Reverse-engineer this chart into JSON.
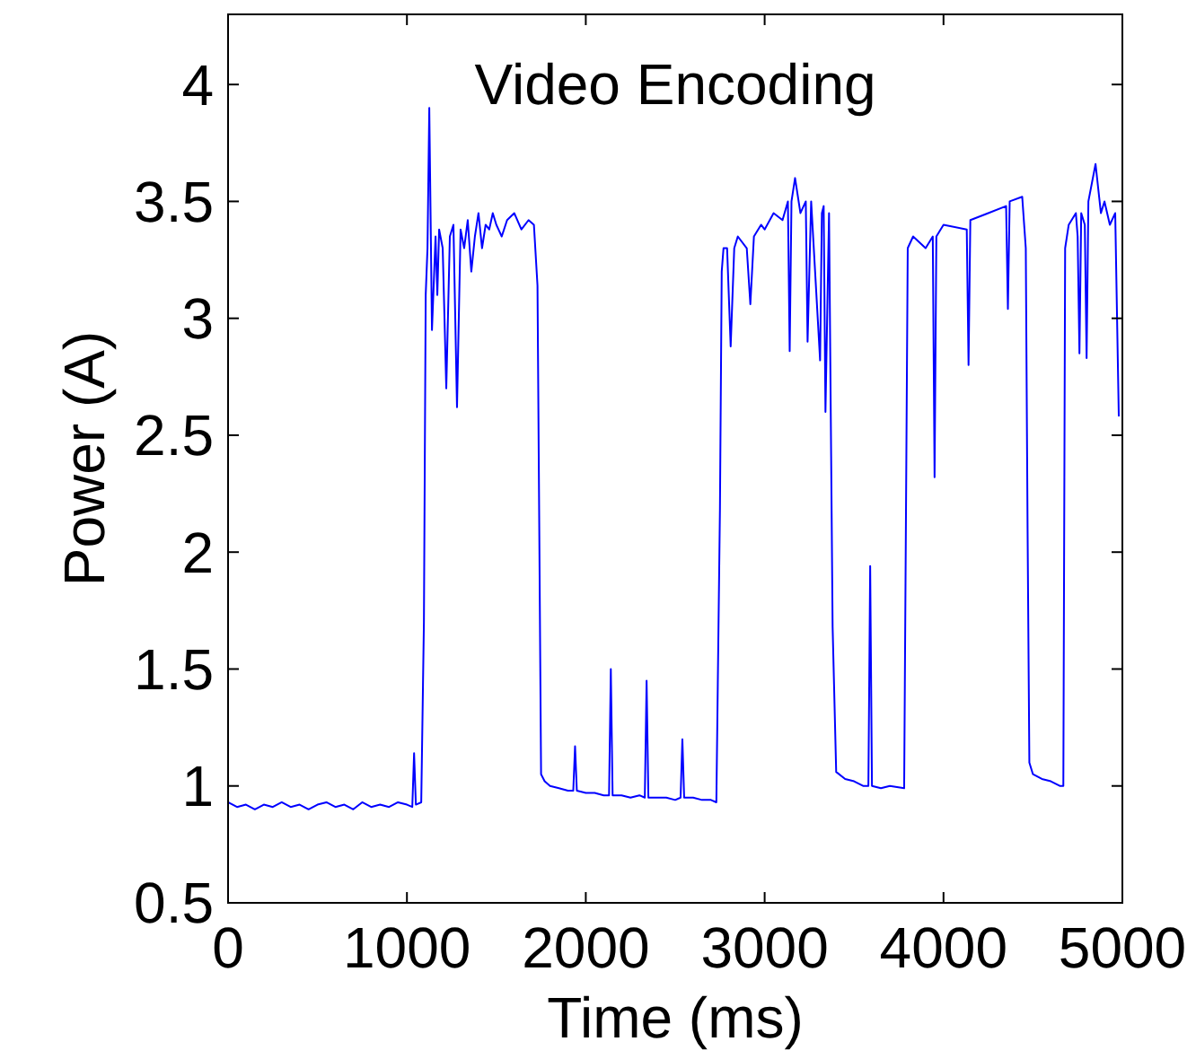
{
  "chart_data": {
    "type": "line",
    "title": "Video Encoding",
    "xlabel": "Time (ms)",
    "ylabel": "Power (A)",
    "xlim": [
      0,
      5000
    ],
    "ylim": [
      0.5,
      4.3
    ],
    "xticks": [
      0,
      1000,
      2000,
      3000,
      4000,
      5000
    ],
    "yticks": [
      0.5,
      1,
      1.5,
      2,
      2.5,
      3,
      3.5,
      4
    ],
    "grid": false,
    "marker": "none",
    "line_style": "solid",
    "series": [
      {
        "color": "#0000ff",
        "x": [
          0,
          50,
          100,
          150,
          200,
          250,
          300,
          350,
          400,
          450,
          500,
          550,
          600,
          650,
          700,
          750,
          800,
          850,
          900,
          950,
          1000,
          1030,
          1040,
          1050,
          1080,
          1095,
          1105,
          1115,
          1125,
          1140,
          1160,
          1170,
          1180,
          1200,
          1220,
          1240,
          1260,
          1280,
          1300,
          1320,
          1340,
          1360,
          1380,
          1400,
          1420,
          1440,
          1460,
          1480,
          1500,
          1530,
          1560,
          1600,
          1640,
          1680,
          1710,
          1730,
          1750,
          1770,
          1800,
          1850,
          1900,
          1930,
          1940,
          1950,
          2000,
          2050,
          2100,
          2130,
          2140,
          2150,
          2200,
          2250,
          2300,
          2330,
          2340,
          2350,
          2400,
          2450,
          2500,
          2530,
          2540,
          2550,
          2600,
          2650,
          2700,
          2730,
          2750,
          2760,
          2770,
          2790,
          2810,
          2830,
          2850,
          2900,
          2920,
          2940,
          2980,
          3000,
          3050,
          3100,
          3130,
          3140,
          3150,
          3170,
          3200,
          3230,
          3240,
          3260,
          3310,
          3320,
          3330,
          3340,
          3360,
          3380,
          3400,
          3450,
          3500,
          3550,
          3580,
          3590,
          3600,
          3650,
          3700,
          3780,
          3800,
          3830,
          3900,
          3940,
          3950,
          3960,
          4000,
          4130,
          4140,
          4150,
          4250,
          4350,
          4360,
          4370,
          4440,
          4460,
          4470,
          4480,
          4500,
          4550,
          4600,
          4650,
          4670,
          4680,
          4700,
          4740,
          4750,
          4760,
          4770,
          4790,
          4800,
          4810,
          4850,
          4880,
          4900,
          4930,
          4960,
          4980
        ],
        "values": [
          0.93,
          0.91,
          0.92,
          0.9,
          0.92,
          0.91,
          0.93,
          0.91,
          0.92,
          0.9,
          0.92,
          0.93,
          0.91,
          0.92,
          0.9,
          0.93,
          0.91,
          0.92,
          0.91,
          0.93,
          0.92,
          0.91,
          1.14,
          0.92,
          0.93,
          1.7,
          3.1,
          3.3,
          3.9,
          2.95,
          3.35,
          3.1,
          3.38,
          3.3,
          2.7,
          3.35,
          3.4,
          2.62,
          3.38,
          3.3,
          3.42,
          3.2,
          3.35,
          3.45,
          3.3,
          3.4,
          3.38,
          3.45,
          3.4,
          3.35,
          3.42,
          3.45,
          3.38,
          3.42,
          3.4,
          3.14,
          1.05,
          1.02,
          1.0,
          0.99,
          0.98,
          0.98,
          1.17,
          0.98,
          0.97,
          0.97,
          0.96,
          0.96,
          1.5,
          0.96,
          0.96,
          0.95,
          0.96,
          0.95,
          1.45,
          0.95,
          0.95,
          0.95,
          0.94,
          0.95,
          1.2,
          0.95,
          0.95,
          0.94,
          0.94,
          0.93,
          2.18,
          3.2,
          3.3,
          3.3,
          2.88,
          3.3,
          3.35,
          3.3,
          3.06,
          3.35,
          3.4,
          3.38,
          3.45,
          3.42,
          3.5,
          2.86,
          3.5,
          3.6,
          3.45,
          3.5,
          2.9,
          3.5,
          2.82,
          3.45,
          3.48,
          2.6,
          3.45,
          1.68,
          1.06,
          1.03,
          1.02,
          1.0,
          1.0,
          1.94,
          1.0,
          0.99,
          1.0,
          0.99,
          3.3,
          3.35,
          3.3,
          3.35,
          2.32,
          3.35,
          3.4,
          3.38,
          2.8,
          3.42,
          3.45,
          3.48,
          3.04,
          3.5,
          3.52,
          3.3,
          2.1,
          1.1,
          1.05,
          1.03,
          1.02,
          1.0,
          1.0,
          3.3,
          3.4,
          3.45,
          3.35,
          2.85,
          3.45,
          3.4,
          2.83,
          3.5,
          3.66,
          3.45,
          3.5,
          3.4,
          3.45,
          2.58
        ]
      }
    ]
  }
}
